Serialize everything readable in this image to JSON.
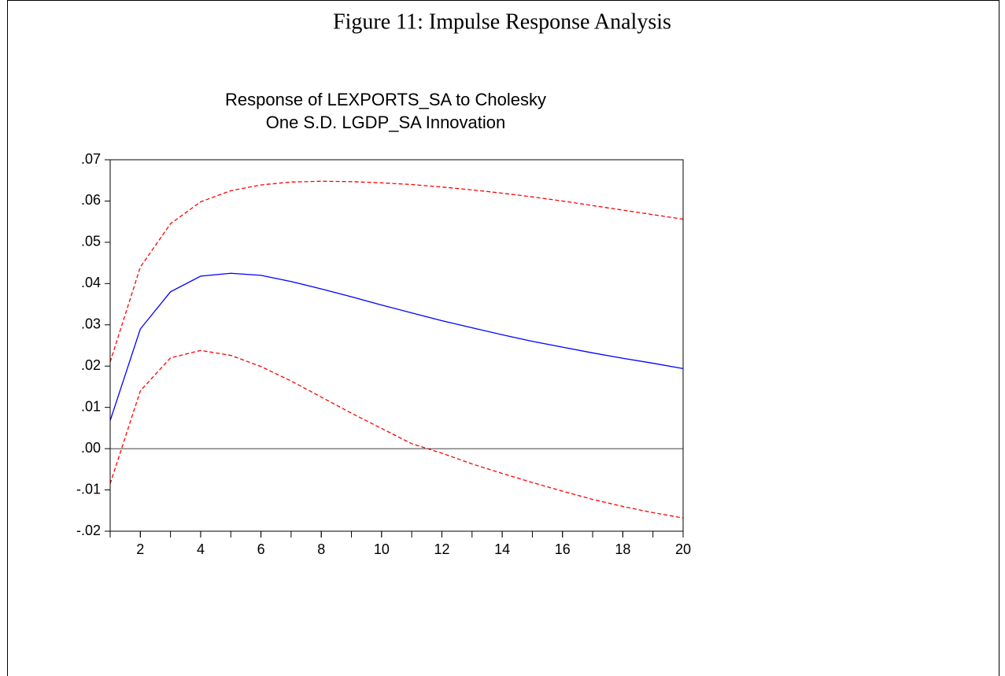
{
  "figure_title": "Figure 11: Impulse Response Analysis",
  "chart_data": {
    "type": "line",
    "title": [
      "Response of LEXPORTS_SA to Cholesky",
      "One S.D. LGDP_SA Innovation"
    ],
    "x": [
      1,
      2,
      3,
      4,
      5,
      6,
      7,
      8,
      9,
      10,
      11,
      12,
      13,
      14,
      15,
      16,
      17,
      18,
      19,
      20
    ],
    "xlim": [
      1,
      20
    ],
    "xticks": [
      2,
      4,
      6,
      8,
      10,
      12,
      14,
      16,
      18,
      20
    ],
    "ylim": [
      -0.02,
      0.07
    ],
    "yticks": [
      {
        "value": 0.07,
        "label": ".07"
      },
      {
        "value": 0.06,
        "label": ".06"
      },
      {
        "value": 0.05,
        "label": ".05"
      },
      {
        "value": 0.04,
        "label": ".04"
      },
      {
        "value": 0.03,
        "label": ".03"
      },
      {
        "value": 0.02,
        "label": ".02"
      },
      {
        "value": 0.01,
        "label": ".01"
      },
      {
        "value": 0,
        "label": ".00"
      },
      {
        "value": -0.01,
        "label": "-.01"
      },
      {
        "value": -0.02,
        "label": "-.02"
      }
    ],
    "grid": false,
    "series": [
      {
        "color": "#0000ff",
        "dashed": false,
        "values": [
          0.0068,
          0.029,
          0.038,
          0.0418,
          0.0425,
          0.042,
          0.0405,
          0.0387,
          0.0368,
          0.0348,
          0.0329,
          0.031,
          0.0293,
          0.0276,
          0.026,
          0.0246,
          0.0232,
          0.0219,
          0.0207,
          0.0194
        ]
      },
      {
        "color": "#ff0000",
        "dashed": true,
        "values": [
          0.021,
          0.044,
          0.0545,
          0.0598,
          0.0625,
          0.0639,
          0.0646,
          0.0648,
          0.0647,
          0.0644,
          0.064,
          0.0634,
          0.0627,
          0.0619,
          0.061,
          0.06,
          0.0589,
          0.0578,
          0.0567,
          0.0556
        ]
      },
      {
        "color": "#ff0000",
        "dashed": true,
        "values": [
          -0.0085,
          0.014,
          0.022,
          0.0238,
          0.0226,
          0.0199,
          0.0164,
          0.0125,
          0.0086,
          0.0049,
          0.0012,
          -0.0011,
          -0.0037,
          -0.006,
          -0.0082,
          -0.0103,
          -0.0123,
          -0.014,
          -0.0155,
          -0.0168
        ]
      }
    ]
  }
}
